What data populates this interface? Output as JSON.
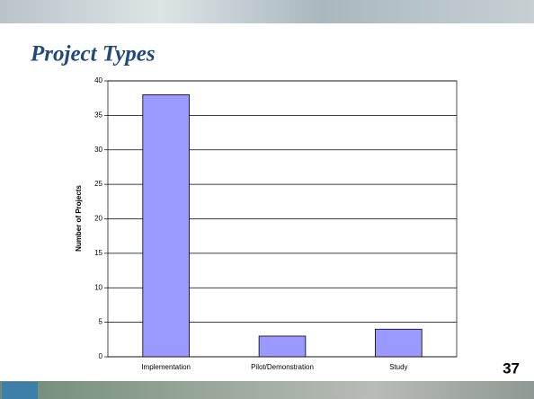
{
  "chart_data": {
    "type": "bar",
    "title": "Project Types",
    "y_label": "Number of Projects",
    "categories": [
      "Implementation",
      "Pilot/Demonstration",
      "Study"
    ],
    "values": [
      38,
      3,
      4
    ],
    "color": "#9999ff",
    "ylim": [
      0,
      40
    ],
    "yticks": [
      0,
      5,
      10,
      15,
      20,
      25,
      30,
      35,
      40
    ],
    "grid": true
  },
  "slide": {
    "page_number": "37"
  }
}
